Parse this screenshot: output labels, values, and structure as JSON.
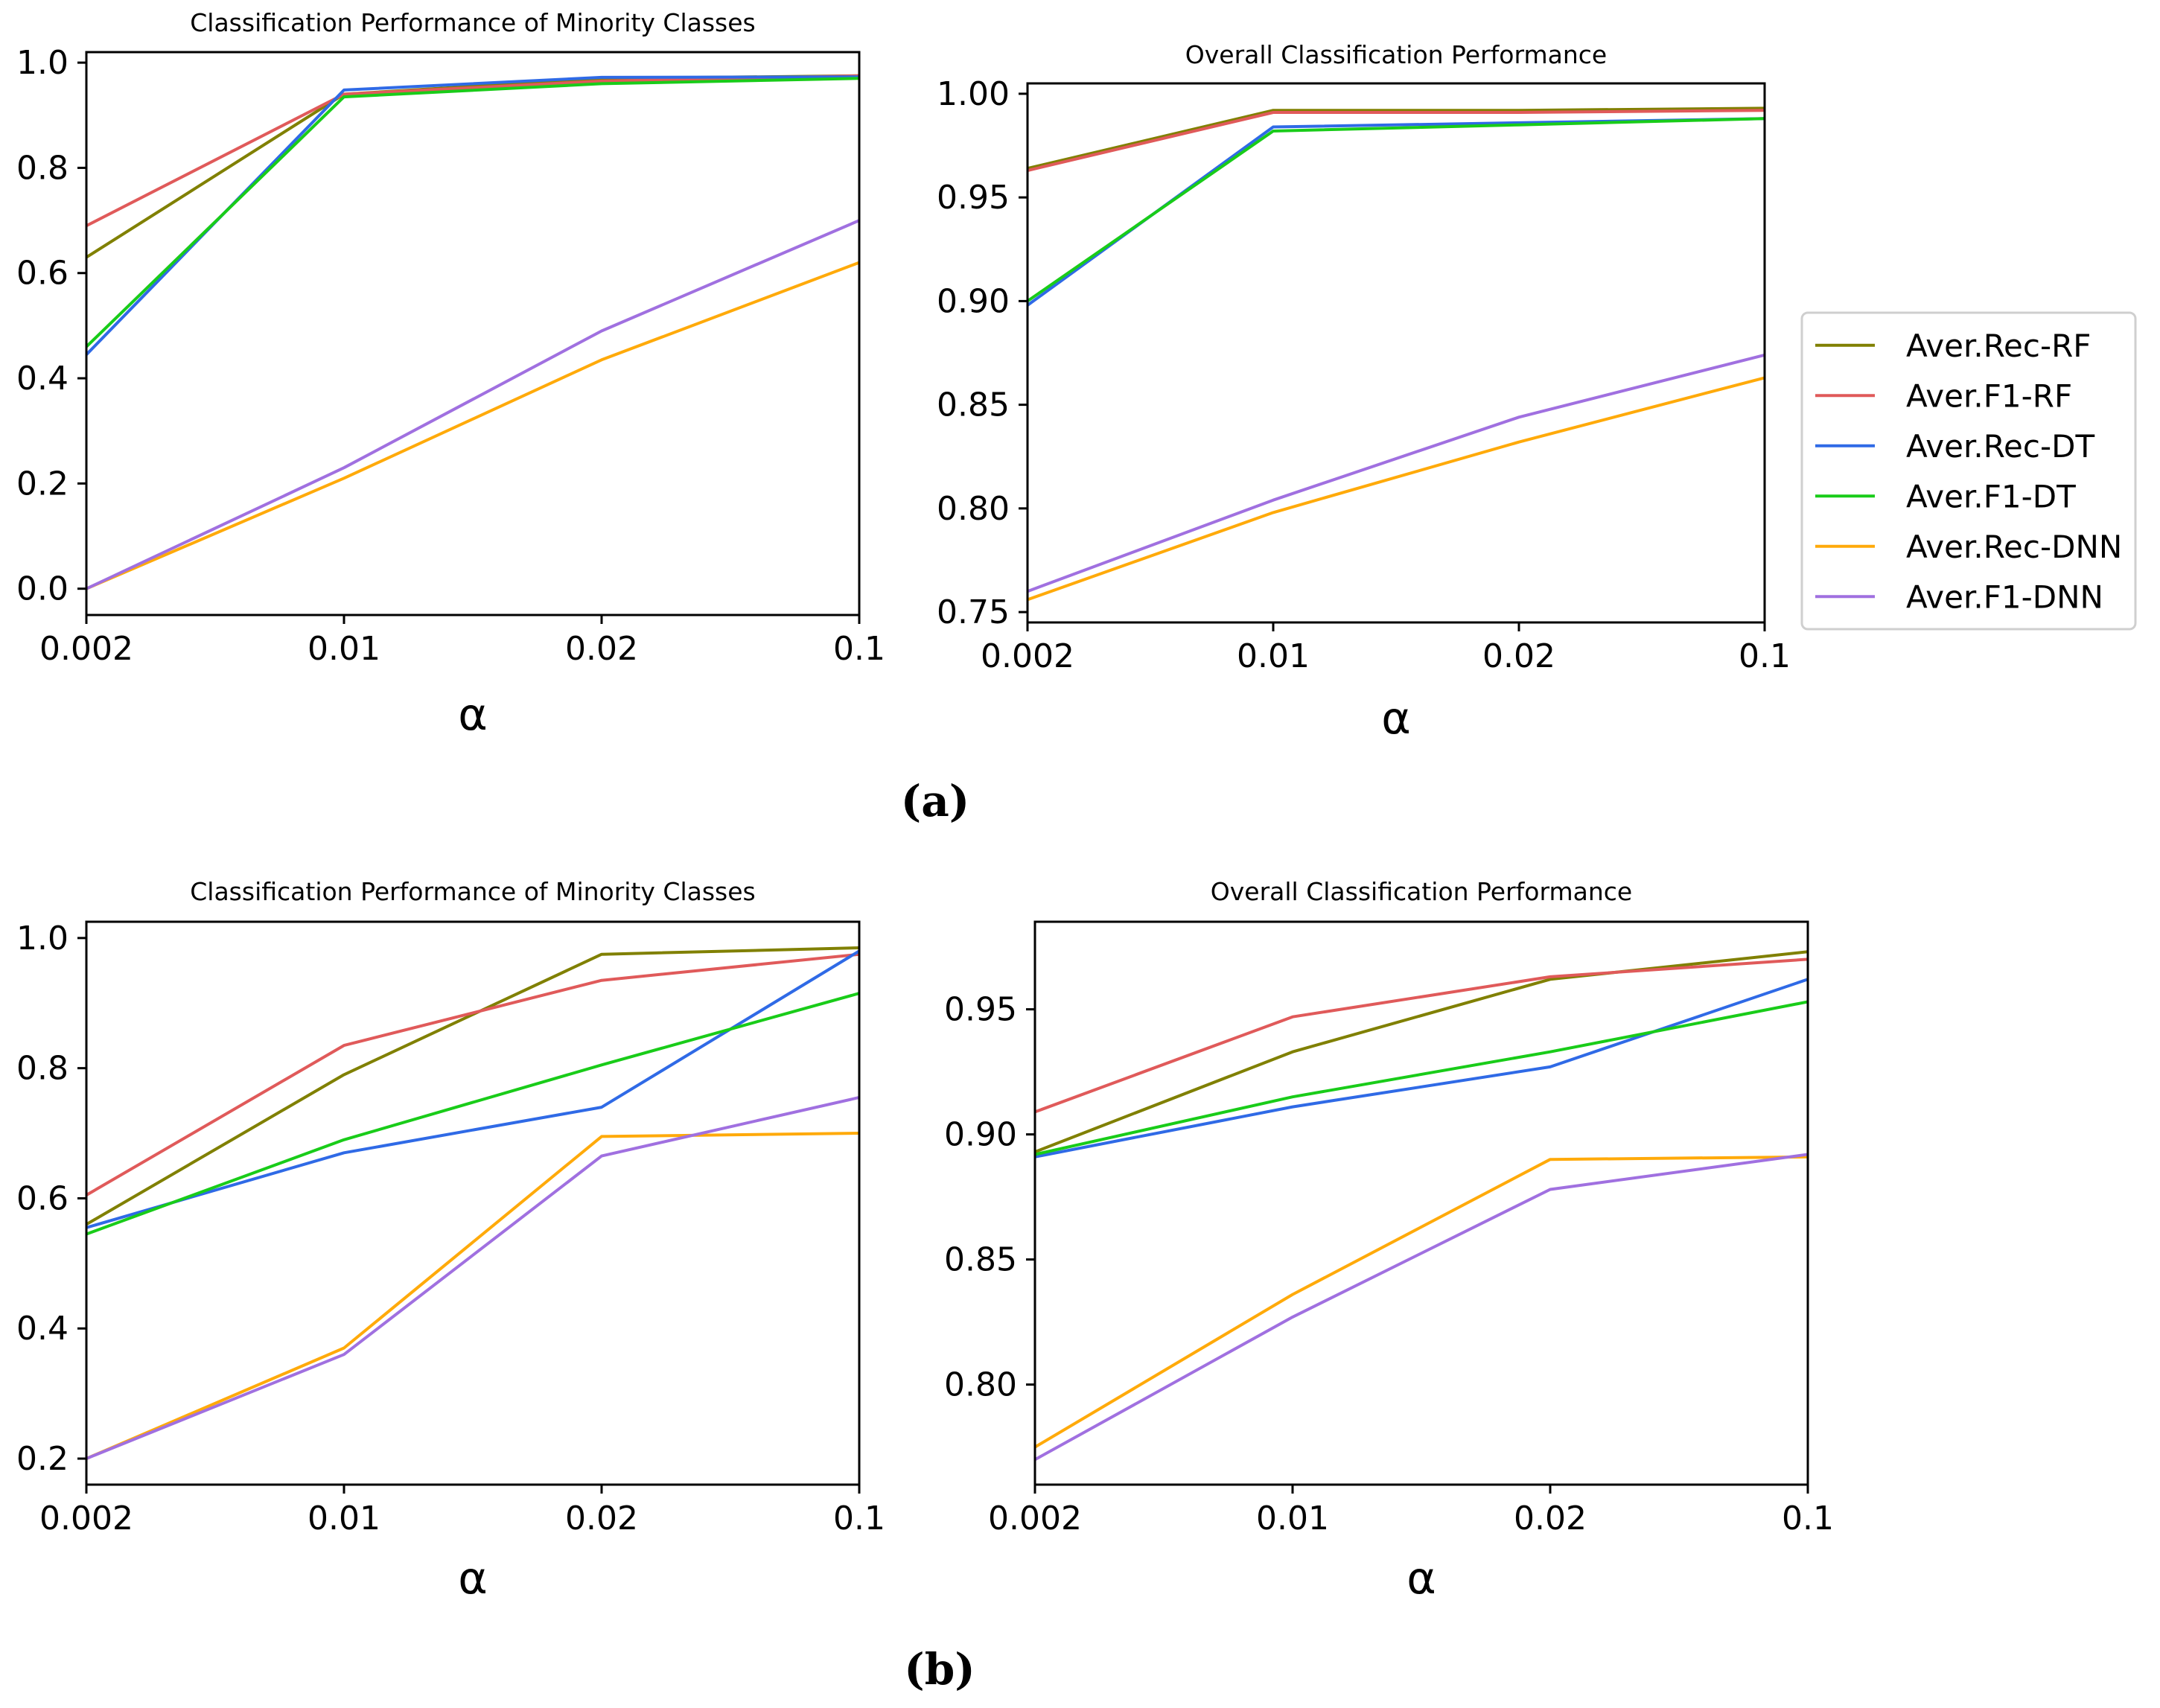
{
  "figure": {
    "panel_labels": [
      "(a)",
      "(b)"
    ],
    "legend": [
      {
        "name": "Aver.Rec-RF",
        "color": "#808000"
      },
      {
        "name": "Aver.F1-RF",
        "color": "#e05a5a"
      },
      {
        "name": "Aver.Rec-DT",
        "color": "#2f6ae6"
      },
      {
        "name": "Aver.F1-DT",
        "color": "#19cc19"
      },
      {
        "name": "Aver.Rec-DNN",
        "color": "#ffaa0a"
      },
      {
        "name": "Aver.F1-DNN",
        "color": "#a070e0"
      }
    ]
  },
  "chart_data": [
    {
      "panel": "(a)",
      "type": "line",
      "title": "Classification Performance of Minority Classes",
      "xlabel": "α",
      "ylabel": "",
      "categories": [
        "0.002",
        "0.01",
        "0.02",
        "0.1"
      ],
      "ylim": [
        -0.05,
        1.02
      ],
      "yticks": [
        "0.0",
        "0.2",
        "0.4",
        "0.6",
        "0.8",
        "1.0"
      ],
      "series": [
        {
          "name": "Aver.Rec-RF",
          "values": [
            0.63,
            0.94,
            0.97,
            0.975
          ]
        },
        {
          "name": "Aver.F1-RF",
          "values": [
            0.69,
            0.94,
            0.965,
            0.975
          ]
        },
        {
          "name": "Aver.Rec-DT",
          "values": [
            0.445,
            0.948,
            0.972,
            0.973
          ]
        },
        {
          "name": "Aver.F1-DT",
          "values": [
            0.46,
            0.935,
            0.96,
            0.97
          ]
        },
        {
          "name": "Aver.Rec-DNN",
          "values": [
            0.0,
            0.21,
            0.435,
            0.62
          ]
        },
        {
          "name": "Aver.F1-DNN",
          "values": [
            0.0,
            0.23,
            0.49,
            0.7
          ]
        }
      ]
    },
    {
      "panel": "(a)",
      "type": "line",
      "title": "Overall Classification Performance",
      "xlabel": "α",
      "ylabel": "",
      "categories": [
        "0.002",
        "0.01",
        "0.02",
        "0.1"
      ],
      "ylim": [
        0.745,
        1.005
      ],
      "yticks": [
        "0.75",
        "0.80",
        "0.85",
        "0.90",
        "0.95",
        "1.00"
      ],
      "series": [
        {
          "name": "Aver.Rec-RF",
          "values": [
            0.964,
            0.992,
            0.992,
            0.993
          ]
        },
        {
          "name": "Aver.F1-RF",
          "values": [
            0.963,
            0.991,
            0.991,
            0.992
          ]
        },
        {
          "name": "Aver.Rec-DT",
          "values": [
            0.898,
            0.984,
            0.986,
            0.988
          ]
        },
        {
          "name": "Aver.F1-DT",
          "values": [
            0.9,
            0.982,
            0.985,
            0.988
          ]
        },
        {
          "name": "Aver.Rec-DNN",
          "values": [
            0.756,
            0.798,
            0.832,
            0.863
          ]
        },
        {
          "name": "Aver.F1-DNN",
          "values": [
            0.76,
            0.804,
            0.844,
            0.874
          ]
        }
      ]
    },
    {
      "panel": "(b)",
      "type": "line",
      "title": "Classification Performance of Minority Classes",
      "xlabel": "α",
      "ylabel": "",
      "categories": [
        "0.002",
        "0.01",
        "0.02",
        "0.1"
      ],
      "ylim": [
        0.16,
        1.025
      ],
      "yticks": [
        "0.2",
        "0.4",
        "0.6",
        "0.8",
        "1.0"
      ],
      "series": [
        {
          "name": "Aver.Rec-RF",
          "values": [
            0.56,
            0.79,
            0.975,
            0.985
          ]
        },
        {
          "name": "Aver.F1-RF",
          "values": [
            0.605,
            0.835,
            0.935,
            0.975
          ]
        },
        {
          "name": "Aver.Rec-DT",
          "values": [
            0.555,
            0.67,
            0.74,
            0.98
          ]
        },
        {
          "name": "Aver.F1-DT",
          "values": [
            0.545,
            0.69,
            0.805,
            0.915
          ]
        },
        {
          "name": "Aver.Rec-DNN",
          "values": [
            0.2,
            0.37,
            0.695,
            0.7
          ]
        },
        {
          "name": "Aver.F1-DNN",
          "values": [
            0.2,
            0.36,
            0.665,
            0.755
          ]
        }
      ]
    },
    {
      "panel": "(b)",
      "type": "line",
      "title": "Overall Classification Performance",
      "xlabel": "α",
      "ylabel": "",
      "categories": [
        "0.002",
        "0.01",
        "0.02",
        "0.1"
      ],
      "ylim": [
        0.76,
        0.985
      ],
      "yticks": [
        "0.80",
        "0.85",
        "0.90",
        "0.95"
      ],
      "series": [
        {
          "name": "Aver.Rec-RF",
          "values": [
            0.893,
            0.933,
            0.962,
            0.973
          ]
        },
        {
          "name": "Aver.F1-RF",
          "values": [
            0.909,
            0.947,
            0.963,
            0.97
          ]
        },
        {
          "name": "Aver.Rec-DT",
          "values": [
            0.891,
            0.911,
            0.927,
            0.962
          ]
        },
        {
          "name": "Aver.F1-DT",
          "values": [
            0.892,
            0.915,
            0.933,
            0.953
          ]
        },
        {
          "name": "Aver.Rec-DNN",
          "values": [
            0.775,
            0.836,
            0.89,
            0.891
          ]
        },
        {
          "name": "Aver.F1-DNN",
          "values": [
            0.77,
            0.827,
            0.878,
            0.892
          ]
        }
      ]
    }
  ]
}
